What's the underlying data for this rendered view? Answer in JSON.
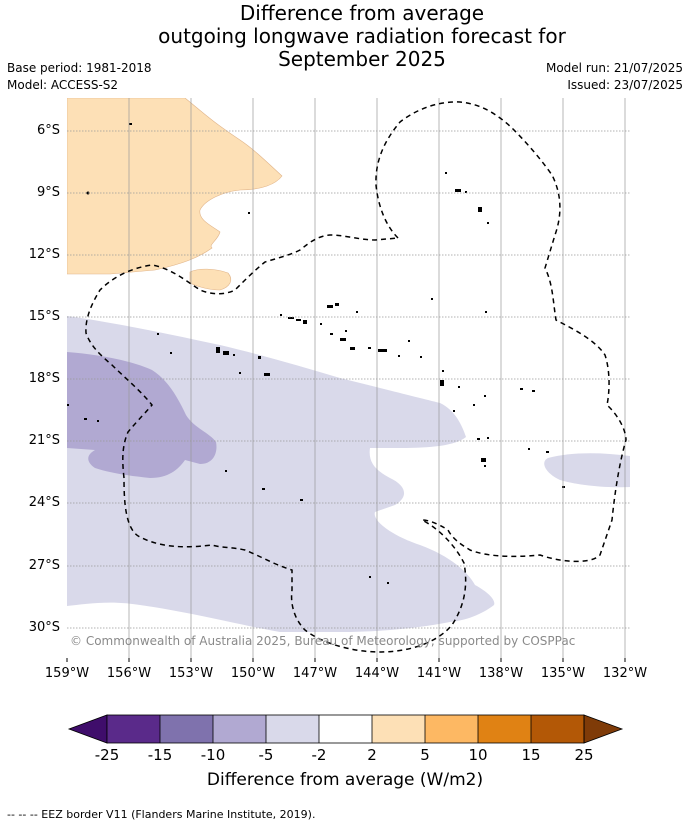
{
  "header": {
    "title_line1": "Difference from average",
    "title_line2": "outgoing longwave radiation forecast for",
    "title_line3": "September 2025",
    "base_period": "Base period: 1981-2018",
    "model": "Model: ACCESS-S2",
    "model_run": "Model run: 21/07/2025",
    "issued": "Issued: 23/07/2025"
  },
  "map": {
    "lat_labels": [
      "6°S",
      "9°S",
      "12°S",
      "15°S",
      "18°S",
      "21°S",
      "24°S",
      "27°S",
      "30°S"
    ],
    "lon_labels": [
      "159°W",
      "156°W",
      "153°W",
      "150°W",
      "147°W",
      "144°W",
      "141°W",
      "138°W",
      "135°W",
      "132°W"
    ],
    "copyright": "© Commonwealth of Australia 2025, Bureau of Meteorology, supported by COSPPac",
    "colors": {
      "pos_2_5": "#fde0b6",
      "neg_2_5": "#d9d9ea",
      "neg_5_10": "#b1a9d2",
      "gridline": "#999999"
    }
  },
  "colorbar": {
    "tick_labels": [
      "-25",
      "-15",
      "-10",
      "-5",
      "-2",
      "2",
      "5",
      "10",
      "15",
      "25"
    ],
    "colors": [
      "#3f0d6b",
      "#5a2a8a",
      "#7f72ad",
      "#b1a9d2",
      "#d9d9ea",
      "#ffffff",
      "#fde0b6",
      "#fdb863",
      "#e08214",
      "#b35806",
      "#7f3b08"
    ],
    "label": "Difference from average (W/m2)"
  },
  "footer": {
    "eez_note": "--  --  -- EEZ border V11 (Flanders Marine Institute, 2019)."
  }
}
